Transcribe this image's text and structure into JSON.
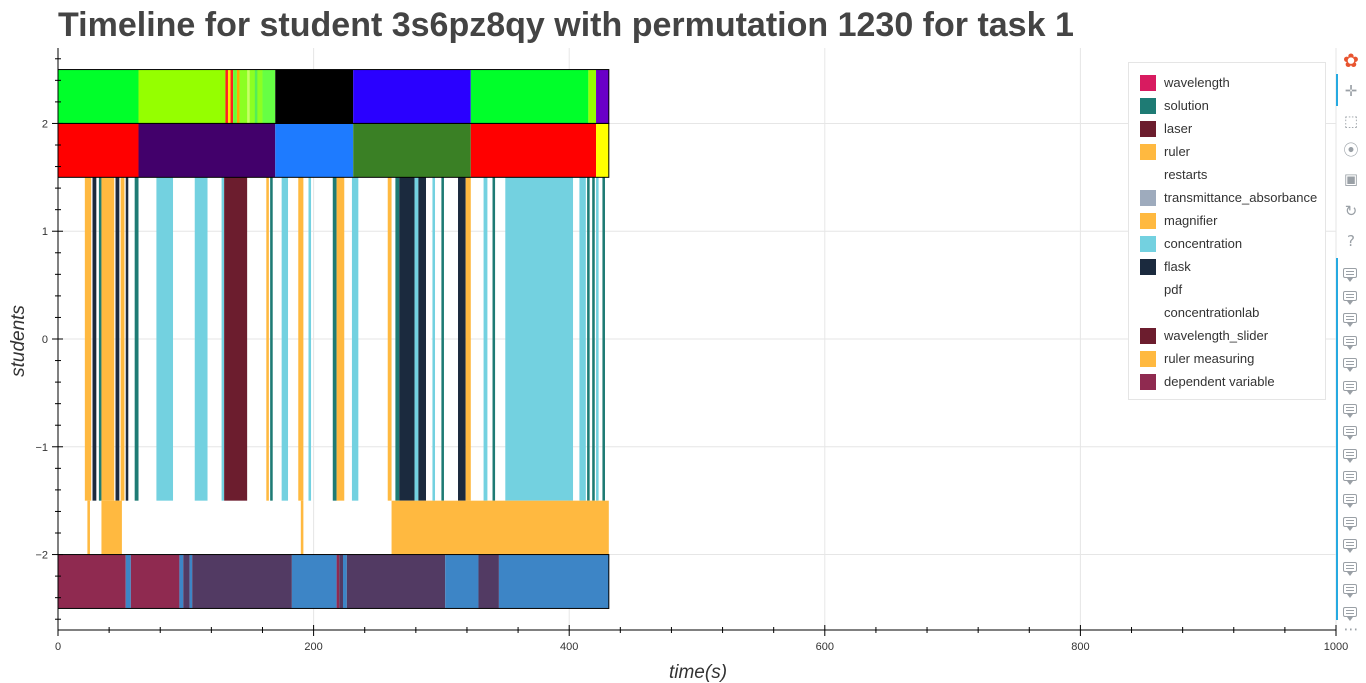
{
  "chart_data": {
    "type": "timeline",
    "title": "Timeline for student 3s6pz8qy with permutation 1230 for task 1",
    "xlabel": "time(s)",
    "ylabel": "students",
    "xlim": [
      0,
      1000
    ],
    "ylim": [
      -2.7,
      2.7
    ],
    "x_ticks": [
      0,
      200,
      400,
      600,
      800,
      1000
    ],
    "x_tick_labels": [
      "0",
      "200",
      "400",
      "600",
      "800",
      "1000"
    ],
    "y_ticks": [
      -2,
      -1,
      0,
      1,
      2
    ],
    "y_tick_labels": [
      "−2",
      "−1",
      "0",
      "1",
      "2"
    ],
    "grid": true,
    "legend_position": "top-right",
    "legend": [
      {
        "label": "wavelength",
        "color": "#d81b60"
      },
      {
        "label": "solution",
        "color": "#1e7b74"
      },
      {
        "label": "laser",
        "color": "#6c1d2e"
      },
      {
        "label": "ruler",
        "color": "#ffb940"
      },
      {
        "label": "restarts",
        "color": "#ffffff"
      },
      {
        "label": "transmittance_absorbance",
        "color": "#9eabbd"
      },
      {
        "label": "magnifier",
        "color": "#ffb940"
      },
      {
        "label": "concentration",
        "color": "#73d1e0"
      },
      {
        "label": "flask",
        "color": "#1b2a3e"
      },
      {
        "label": "pdf",
        "color": "#ffffff"
      },
      {
        "label": "concentrationlab",
        "color": "#ffffff"
      },
      {
        "label": "wavelength_slider",
        "color": "#6c1d2e"
      },
      {
        "label": "ruler measuring",
        "color": "#ffb940"
      },
      {
        "label": "dependent variable",
        "color": "#8f2a50"
      }
    ],
    "rows": [
      {
        "y_range": [
          2.0,
          2.5
        ],
        "segments": [
          [
            0,
            63,
            "#00ff2a"
          ],
          [
            63,
            131,
            "#95ff00"
          ],
          [
            131,
            133,
            "#ff2020"
          ],
          [
            133,
            135,
            "#ffee00"
          ],
          [
            135,
            137,
            "#ff2020"
          ],
          [
            137,
            140,
            "#66ff33"
          ],
          [
            140,
            142,
            "#ffaa00"
          ],
          [
            142,
            160,
            "#8cff22"
          ],
          [
            148,
            150,
            "#c8ff66"
          ],
          [
            154,
            156,
            "#55ee55"
          ],
          [
            160,
            170,
            "#66ff44"
          ],
          [
            170,
            231,
            "#000000"
          ],
          [
            231,
            323,
            "#2a00ff"
          ],
          [
            323,
            415,
            "#00ff2a"
          ],
          [
            415,
            421,
            "#95ff00"
          ],
          [
            421,
            431,
            "#6a00c8"
          ]
        ]
      },
      {
        "y_range": [
          1.5,
          2.0
        ],
        "segments": [
          [
            0,
            63,
            "#ff0000"
          ],
          [
            63,
            170,
            "#42006b"
          ],
          [
            170,
            231,
            "#1e7bff"
          ],
          [
            231,
            323,
            "#3a8025"
          ],
          [
            323,
            421,
            "#ff0000"
          ],
          [
            421,
            431,
            "#ffff00"
          ]
        ]
      },
      {
        "y_range": [
          -1.5,
          1.5
        ],
        "segments": [
          [
            21,
            26,
            "#ffb940"
          ],
          [
            27,
            30,
            "#1b2a3e"
          ],
          [
            32,
            34,
            "#1e7b74"
          ],
          [
            34,
            44,
            "#ffb940"
          ],
          [
            45,
            48,
            "#1b2a3e"
          ],
          [
            49,
            52,
            "#ffb940"
          ],
          [
            53,
            55,
            "#1b2a3e"
          ],
          [
            60,
            63,
            "#1e7b74"
          ],
          [
            77,
            90,
            "#73d1e0"
          ],
          [
            107,
            117,
            "#73d1e0"
          ],
          [
            128,
            130,
            "#73d1e0"
          ],
          [
            130,
            148,
            "#6c1d2e"
          ],
          [
            163,
            165,
            "#ffb940"
          ],
          [
            166,
            168,
            "#1e7b74"
          ],
          [
            175,
            180,
            "#73d1e0"
          ],
          [
            188,
            192,
            "#ffb940"
          ],
          [
            196,
            198,
            "#73d1e0"
          ],
          [
            215,
            218,
            "#1e7b74"
          ],
          [
            218,
            224,
            "#ffb940"
          ],
          [
            230,
            235,
            "#73d1e0"
          ],
          [
            258,
            261,
            "#ffb940"
          ],
          [
            264,
            267,
            "#1e7b74"
          ],
          [
            267,
            279,
            "#1b2a3e"
          ],
          [
            279,
            282,
            "#73d1e0"
          ],
          [
            282,
            288,
            "#1b2a3e"
          ],
          [
            288,
            292,
            "#ffffff"
          ],
          [
            293,
            295,
            "#73d1e0"
          ],
          [
            300,
            302,
            "#1e7b74"
          ],
          [
            313,
            319,
            "#1b2a3e"
          ],
          [
            319,
            323,
            "#ffb940"
          ],
          [
            333,
            336,
            "#73d1e0"
          ],
          [
            340,
            342,
            "#1e7b74"
          ],
          [
            350,
            403,
            "#73d1e0"
          ],
          [
            408,
            413,
            "#73d1e0"
          ],
          [
            414,
            416,
            "#1e7b74"
          ],
          [
            418,
            420,
            "#1e7b74"
          ],
          [
            421,
            423,
            "#73d1e0"
          ],
          [
            426,
            428,
            "#1e7b74"
          ]
        ]
      },
      {
        "y_range": [
          -2.0,
          -1.5
        ],
        "segments": [
          [
            23,
            25,
            "#ffb940"
          ],
          [
            34,
            50,
            "#ffb940"
          ],
          [
            190,
            192,
            "#ffb940"
          ],
          [
            261,
            431,
            "#ffb940"
          ]
        ]
      },
      {
        "y_range": [
          -2.5,
          -2.0
        ],
        "segments": [
          [
            0,
            53,
            "#8f2a50"
          ],
          [
            53,
            57,
            "#3d85c6"
          ],
          [
            57,
            95,
            "#8f2a50"
          ],
          [
            95,
            98,
            "#3d85c6"
          ],
          [
            98,
            103,
            "#523a63"
          ],
          [
            103,
            105,
            "#3d85c6"
          ],
          [
            105,
            183,
            "#523a63"
          ],
          [
            183,
            218,
            "#3d85c6"
          ],
          [
            218,
            220,
            "#8f2a50"
          ],
          [
            220,
            223,
            "#523a63"
          ],
          [
            223,
            226,
            "#3d85c6"
          ],
          [
            226,
            303,
            "#523a63"
          ],
          [
            303,
            329,
            "#3d85c6"
          ],
          [
            329,
            345,
            "#523a63"
          ],
          [
            345,
            431,
            "#3d85c6"
          ]
        ]
      }
    ]
  },
  "toolbar": {
    "tools": [
      {
        "name": "bokeh-logo-icon",
        "glyph": "✿"
      },
      {
        "name": "pan-icon",
        "glyph": "✛"
      },
      {
        "name": "box-zoom-icon",
        "glyph": "⬚"
      },
      {
        "name": "wheel-zoom-icon",
        "glyph": "⦿"
      },
      {
        "name": "save-icon",
        "glyph": "▣"
      },
      {
        "name": "reset-icon",
        "glyph": "↻"
      },
      {
        "name": "help-icon",
        "glyph": "?"
      }
    ],
    "hover_tool_count": 16,
    "more": "⋯"
  }
}
